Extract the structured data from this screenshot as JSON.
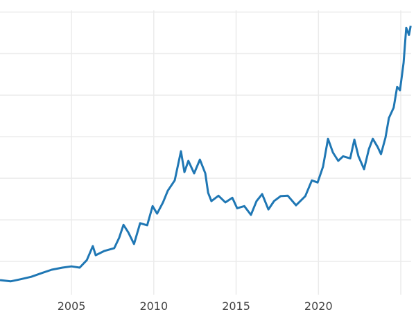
{
  "chart_data": {
    "type": "line",
    "title": "",
    "xlabel": "",
    "ylabel": "",
    "xlim": [
      2000.66,
      2025.63
    ],
    "ylim": [
      100,
      3520
    ],
    "grid": true,
    "x_ticks": [
      2005,
      2010,
      2015,
      2020,
      2025
    ],
    "x_tick_labels": [
      "2005",
      "2010",
      "2015",
      "2020",
      ""
    ],
    "y_gridlines": [
      500,
      1000,
      1500,
      2000,
      2500,
      3000,
      3500
    ],
    "line_color": "#1f77b4",
    "grid_color": "#ebebeb",
    "series": [
      {
        "x": [
          2000.66,
          2001.3,
          2001.9,
          2002.56,
          2003.2,
          2003.8,
          2004.45,
          2005.0,
          2005.5,
          2005.93,
          2006.3,
          2006.47,
          2006.98,
          2007.6,
          2007.9,
          2008.16,
          2008.45,
          2008.8,
          2009.17,
          2009.6,
          2009.93,
          2010.2,
          2010.56,
          2010.85,
          2011.27,
          2011.65,
          2011.86,
          2012.1,
          2012.45,
          2012.8,
          2013.13,
          2013.3,
          2013.5,
          2013.93,
          2014.35,
          2014.77,
          2015.06,
          2015.5,
          2015.9,
          2016.24,
          2016.58,
          2016.96,
          2017.3,
          2017.7,
          2018.14,
          2018.64,
          2019.2,
          2019.6,
          2019.95,
          2020.28,
          2020.58,
          2020.88,
          2021.2,
          2021.5,
          2021.93,
          2022.18,
          2022.43,
          2022.77,
          2023.06,
          2023.3,
          2023.6,
          2023.8,
          2024.07,
          2024.28,
          2024.57,
          2024.78,
          2024.95,
          2025.17,
          2025.33,
          2025.5,
          2025.6
        ],
        "y": [
          275,
          260,
          285,
          315,
          360,
          400,
          425,
          440,
          425,
          515,
          685,
          575,
          625,
          660,
          785,
          940,
          850,
          710,
          960,
          935,
          1165,
          1075,
          1210,
          1350,
          1475,
          1825,
          1575,
          1710,
          1560,
          1725,
          1560,
          1325,
          1225,
          1290,
          1210,
          1265,
          1140,
          1165,
          1060,
          1225,
          1310,
          1125,
          1225,
          1285,
          1290,
          1175,
          1285,
          1475,
          1450,
          1640,
          1975,
          1810,
          1710,
          1765,
          1740,
          1965,
          1765,
          1610,
          1850,
          1975,
          1875,
          1790,
          1990,
          2225,
          2350,
          2600,
          2560,
          2890,
          3310,
          3225,
          3335
        ]
      }
    ]
  }
}
